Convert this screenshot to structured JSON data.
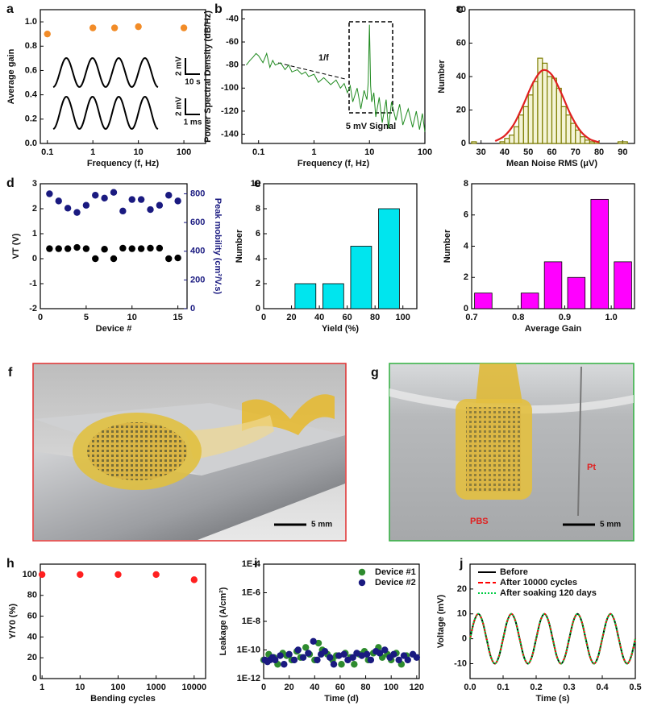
{
  "chart_data": [
    {
      "panel": "a",
      "type": "scatter",
      "xlabel": "Frequency (f, Hz)",
      "ylabel": "Average gain",
      "xlog": true,
      "xlim": [
        0.07,
        300
      ],
      "xticks": [
        0.1,
        1,
        10,
        100
      ],
      "ylim": [
        0,
        1.1
      ],
      "yticks": [
        {
          "value": 0,
          "label": "0.0"
        },
        0.2,
        0.4,
        0.6,
        0.8,
        {
          "value": 1,
          "label": "1.0"
        }
      ],
      "x": [
        0.1,
        1,
        3,
        10,
        100
      ],
      "series": [
        {
          "color": "#f28c28",
          "values": [
            0.9,
            0.95,
            0.95,
            0.96,
            0.95
          ]
        }
      ],
      "scale_bars": [
        {
          "y": "2 mV",
          "x": "10 s"
        },
        {
          "y": "2 mV",
          "x": "1 ms"
        }
      ]
    },
    {
      "panel": "b",
      "type": "line",
      "xlabel": "Frequency (f, Hz)",
      "ylabel": "Power Spectral Density (dB/Hz)",
      "xlog": true,
      "xlim": [
        0.05,
        100
      ],
      "xticks": [
        0.1,
        1,
        10,
        100
      ],
      "ylim": [
        -148,
        -32
      ],
      "yticks": [
        -140,
        -120,
        -100,
        -80,
        -60,
        -40
      ],
      "x": [
        0.06,
        0.07,
        0.08,
        0.09,
        0.1,
        0.12,
        0.14,
        0.16,
        0.18,
        0.2,
        0.25,
        0.3,
        0.35,
        0.4,
        0.5,
        0.6,
        0.7,
        0.8,
        1,
        1.2,
        1.5,
        2,
        2.5,
        3,
        3.5,
        4,
        4.5,
        5,
        6,
        7,
        8,
        9,
        9.5,
        10,
        10.5,
        11,
        12,
        13,
        15,
        17,
        20,
        22,
        25,
        30,
        35,
        40,
        50,
        60,
        70,
        80,
        90,
        100
      ],
      "series": [
        {
          "color": "#1f8a1f",
          "values": [
            -80,
            -76,
            -73,
            -70,
            -72,
            -78,
            -70,
            -82,
            -76,
            -80,
            -78,
            -84,
            -80,
            -86,
            -84,
            -88,
            -86,
            -90,
            -88,
            -95,
            -91,
            -97,
            -93,
            -100,
            -96,
            -104,
            -98,
            -112,
            -100,
            -118,
            -102,
            -110,
            -95,
            -45,
            -98,
            -112,
            -104,
            -125,
            -108,
            -130,
            -110,
            -135,
            -112,
            -128,
            -114,
            -132,
            -118,
            -134,
            -120,
            -136,
            -122,
            -138
          ]
        }
      ],
      "annotations": [
        "1/f",
        "5 mV Signal"
      ]
    },
    {
      "panel": "c",
      "type": "histogram",
      "xlabel": "Mean Noise RMS (μV)",
      "ylabel": "Number",
      "xlim": [
        25,
        95
      ],
      "xticks": [
        30,
        40,
        50,
        60,
        70,
        80,
        90
      ],
      "ylim": [
        0,
        80
      ],
      "yticks": [
        0,
        20,
        40,
        60,
        80
      ],
      "color": "#7d7d00",
      "bins": [
        26,
        28,
        30,
        32,
        34,
        36,
        38,
        40,
        42,
        44,
        46,
        48,
        50,
        52,
        54,
        56,
        58,
        60,
        62,
        64,
        66,
        68,
        70,
        72,
        74,
        76,
        78,
        80,
        82,
        84,
        86,
        88,
        90,
        92
      ],
      "values": [
        1,
        0,
        0,
        0,
        0,
        0,
        1,
        3,
        5,
        10,
        17,
        22,
        29,
        37,
        51,
        48,
        40,
        39,
        33,
        22,
        17,
        12,
        8,
        4,
        2,
        1,
        1,
        0,
        0,
        0,
        0,
        1,
        1
      ],
      "fit": {
        "color": "#e02020",
        "x": [
          36,
          40,
          44,
          48,
          52,
          56,
          60,
          64,
          68,
          72,
          76,
          80
        ],
        "values": [
          1.4,
          4.6,
          11.7,
          23.4,
          36.2,
          43.7,
          41.0,
          30.0,
          17.1,
          7.6,
          2.6,
          0.7
        ]
      }
    },
    {
      "panel": "d",
      "type": "scatter",
      "xlabel": "Device #",
      "ylabel": "VT (V)",
      "y2label": "Peak mobility (cm²/V.s)",
      "xlim": [
        0,
        16
      ],
      "xticks": [
        0,
        5,
        10,
        15
      ],
      "ylim": [
        -2,
        3
      ],
      "yticks": [
        -2,
        -1,
        0,
        1,
        2,
        3
      ],
      "y2lim": [
        0,
        870
      ],
      "y2ticks": [
        0,
        200,
        400,
        600,
        800
      ],
      "y2color": "#1a1a80",
      "x": [
        1,
        2,
        3,
        4,
        5,
        6,
        7,
        8,
        9,
        10,
        11,
        12,
        13,
        14,
        15
      ],
      "series": [
        {
          "color": "#000000",
          "values": [
            0.4,
            0.4,
            0.4,
            0.45,
            0.4,
            0,
            0.38,
            0,
            0.42,
            0.4,
            0.4,
            0.42,
            0.42,
            0,
            0.03
          ]
        },
        {
          "color": "#1a1a80",
          "axis": "y2",
          "values": [
            800,
            750,
            700,
            670,
            720,
            790,
            770,
            810,
            680,
            760,
            760,
            690,
            720,
            790,
            750
          ]
        }
      ]
    },
    {
      "panel": "e",
      "type": "bar",
      "xlabel": "Yield (%)",
      "ylabel": "Number",
      "xlim": [
        0,
        110
      ],
      "xticks": [
        0,
        20,
        40,
        60,
        80,
        100
      ],
      "ylim": [
        0,
        10
      ],
      "yticks": [
        0,
        2,
        4,
        6,
        8,
        10
      ],
      "color": "#00e5ee",
      "x": [
        30,
        50,
        70,
        90
      ],
      "values": [
        2,
        2,
        5,
        8
      ]
    },
    {
      "type": "bar",
      "xlabel": "Average Gain",
      "ylabel": "Number",
      "xlim": [
        0.7,
        1.05
      ],
      "xticks": [
        0.7,
        0.8,
        0.9,
        {
          "value": 1,
          "label": "1.0"
        }
      ],
      "ylim": [
        0,
        8
      ],
      "yticks": [
        0,
        2,
        4,
        6,
        8
      ],
      "color": "#ff00ff",
      "x": [
        0.725,
        0.825,
        0.875,
        0.925,
        0.975,
        1.025
      ],
      "values": [
        1,
        1,
        3,
        2,
        7,
        3
      ]
    },
    {
      "panel": "h",
      "type": "scatter",
      "xlabel": "Bending cycles",
      "ylabel": "Y/Y0 (%)",
      "xlog": true,
      "xlim": [
        0.9,
        20000
      ],
      "xticks": [
        1,
        10,
        100,
        1000,
        10000
      ],
      "ylim": [
        0,
        110
      ],
      "yticks": [
        0,
        20,
        40,
        60,
        80,
        100
      ],
      "x": [
        1,
        10,
        100,
        1000,
        10000
      ],
      "series": [
        {
          "color": "#ff2020",
          "values": [
            100,
            100,
            100,
            100,
            95
          ]
        }
      ]
    },
    {
      "panel": "i",
      "type": "scatter",
      "xlabel": "Time (d)",
      "ylabel": "Leakage (A/cm²)",
      "xlim": [
        0,
        122
      ],
      "xticks": [
        0,
        20,
        40,
        60,
        80,
        100,
        120
      ],
      "ylog": true,
      "ylim": [
        1e-12,
        0.0001
      ],
      "yticks": [
        {
          "value": 1e-12,
          "label": "1E-12"
        },
        {
          "value": 1e-10,
          "label": "1E-10"
        },
        {
          "value": 1e-08,
          "label": "1E-8"
        },
        {
          "value": 1e-06,
          "label": "1E-6"
        },
        {
          "value": 0.0001,
          "label": "1E-4"
        }
      ],
      "legend": "upper right",
      "series": [
        {
          "name": "Device #1",
          "color": "#2e8b2e",
          "x": [
            0,
            4,
            8,
            11,
            15,
            18,
            22,
            26,
            29,
            33,
            36,
            40,
            43,
            46,
            50,
            54,
            57,
            61,
            64,
            68,
            71,
            75,
            79,
            82,
            86,
            90,
            93,
            97,
            100,
            104,
            108,
            112
          ],
          "values": [
            2e-11,
            5e-11,
            3e-11,
            1e-11,
            6e-11,
            4e-11,
            2e-11,
            8e-11,
            3e-11,
            1.5e-10,
            5e-11,
            2e-11,
            3e-10,
            1e-10,
            5e-11,
            2e-11,
            4e-11,
            1e-11,
            6e-11,
            3e-11,
            1e-11,
            5e-11,
            8e-11,
            2e-11,
            6e-11,
            1.5e-10,
            3e-11,
            5e-11,
            2e-11,
            6e-11,
            1e-11,
            4e-11
          ]
        },
        {
          "name": "Device #2",
          "color": "#1a1a80",
          "x": [
            1,
            3,
            5,
            7,
            9,
            13,
            16,
            20,
            24,
            27,
            31,
            35,
            39,
            42,
            45,
            48,
            52,
            55,
            59,
            63,
            66,
            70,
            73,
            77,
            81,
            84,
            88,
            91,
            95,
            99,
            102,
            106,
            110,
            113,
            117,
            120
          ],
          "values": [
            2e-11,
            1.5e-11,
            2e-11,
            3e-11,
            2e-11,
            4e-11,
            1e-11,
            5e-11,
            2e-11,
            1e-10,
            3e-11,
            6e-11,
            4e-10,
            2e-11,
            5e-11,
            8e-11,
            3e-11,
            1e-11,
            4e-11,
            5e-11,
            2e-11,
            3e-11,
            6e-11,
            4e-11,
            5e-11,
            2e-11,
            8e-11,
            6e-11,
            1e-10,
            3e-11,
            5e-11,
            2e-11,
            4e-11,
            2e-11,
            5e-11,
            3e-11
          ]
        }
      ]
    },
    {
      "panel": "j",
      "type": "line",
      "xlabel": "Time (s)",
      "ylabel": "Voltage (mV)",
      "smooth": true,
      "xlim": [
        0,
        0.5
      ],
      "xticks": [
        {
          "value": 0,
          "label": "0.0"
        },
        0.1,
        0.2,
        0.3,
        0.4,
        0.5
      ],
      "ylim": [
        -16,
        30
      ],
      "yticks": [
        -10,
        0,
        10,
        20
      ],
      "legend": "upper left",
      "x": [
        0,
        0.0125,
        0.025,
        0.0375,
        0.05,
        0.0625,
        0.075,
        0.0875,
        0.1,
        0.1125,
        0.125,
        0.1375,
        0.15,
        0.1625,
        0.175,
        0.1875,
        0.2,
        0.2125,
        0.225,
        0.2375,
        0.25,
        0.2625,
        0.275,
        0.2875,
        0.3,
        0.3125,
        0.325,
        0.3375,
        0.35,
        0.3625,
        0.375,
        0.3875,
        0.4,
        0.4125,
        0.425,
        0.4375,
        0.45,
        0.4625,
        0.475,
        0.4875,
        0.5
      ],
      "series": [
        {
          "name": "Before",
          "color": "#000000",
          "dash": "solid",
          "values": [
            0,
            7.07,
            10,
            7.07,
            0,
            -7.07,
            -10,
            -7.07,
            0,
            7.07,
            10,
            7.07,
            0,
            -7.07,
            -10,
            -7.07,
            0,
            7.07,
            10,
            7.07,
            0,
            -7.07,
            -10,
            -7.07,
            0,
            7.07,
            10,
            7.07,
            0,
            -7.07,
            -10,
            -7.07,
            0,
            7.07,
            10,
            7.07,
            0,
            -7.07,
            -10,
            -7.07,
            0
          ]
        },
        {
          "name": "After 10000 cycles",
          "color": "#ff0000",
          "dash": "dashed",
          "values": [
            0,
            7.07,
            10,
            7.07,
            0,
            -7.07,
            -10,
            -7.07,
            0,
            7.07,
            10,
            7.07,
            0,
            -7.07,
            -10,
            -7.07,
            0,
            7.07,
            10,
            7.07,
            0,
            -7.07,
            -10,
            -7.07,
            0,
            7.07,
            10,
            7.07,
            0,
            -7.07,
            -10,
            -7.07,
            0,
            7.07,
            10,
            7.07,
            0,
            -7.07,
            -10,
            -7.07,
            0
          ]
        },
        {
          "name": "After soaking 120 days",
          "color": "#00cc44",
          "dash": "dotted",
          "values": [
            0,
            7.07,
            10,
            7.07,
            0,
            -7.07,
            -10,
            -7.07,
            0,
            7.07,
            10,
            7.07,
            0,
            -7.07,
            -10,
            -7.07,
            0,
            7.07,
            10,
            7.07,
            0,
            -7.07,
            -10,
            -7.07,
            0,
            7.07,
            10,
            7.07,
            0,
            -7.07,
            -10,
            -7.07,
            0,
            7.07,
            10,
            7.07,
            0,
            -7.07,
            -10,
            -7.07,
            0
          ]
        }
      ]
    }
  ],
  "photos": [
    {
      "panel": "f",
      "scale_bar": "5 mm"
    },
    {
      "panel": "g",
      "scale_bar": "5 mm",
      "labels": [
        "PBS",
        "Pt"
      ]
    }
  ]
}
